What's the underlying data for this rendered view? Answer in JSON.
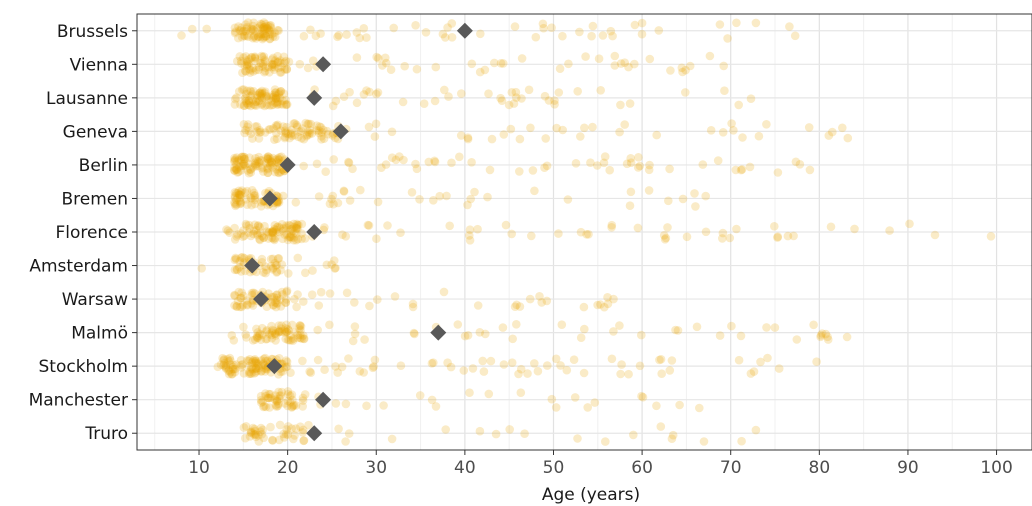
{
  "chart_data": {
    "type": "scatter",
    "title": "",
    "xlabel": "Age (years)",
    "ylabel": "",
    "xlim": [
      3,
      104
    ],
    "x_ticks": [
      "10",
      "20",
      "30",
      "40",
      "50",
      "60",
      "70",
      "80",
      "90",
      "100"
    ],
    "grid": true,
    "legend": "none",
    "point_color": "#E8A400",
    "point_opacity": 0.22,
    "marker_color": "#595959",
    "marker_shape": "diamond",
    "categories": [
      "Brussels",
      "Vienna",
      "Lausanne",
      "Geneva",
      "Berlin",
      "Bremen",
      "Florence",
      "Amsterdam",
      "Warsaw",
      "Malmö",
      "Stockholm",
      "Manchester",
      "Truro"
    ],
    "series": [
      {
        "category": "Brussels",
        "marker": 40,
        "points": [
          {
            "min": 6,
            "max": 78,
            "n": 120,
            "dense_min": 14,
            "dense_max": 19
          }
        ]
      },
      {
        "category": "Vienna",
        "marker": 24,
        "points": [
          {
            "min": 14,
            "max": 72,
            "n": 110,
            "dense_min": 15,
            "dense_max": 20
          }
        ]
      },
      {
        "category": "Lausanne",
        "marker": 23,
        "points": [
          {
            "min": 14,
            "max": 76,
            "n": 130,
            "dense_min": 15,
            "dense_max": 20
          }
        ]
      },
      {
        "category": "Geneva",
        "marker": 26,
        "points": [
          {
            "min": 15,
            "max": 86,
            "n": 115,
            "dense_min": 16,
            "dense_max": 26
          }
        ]
      },
      {
        "category": "Berlin",
        "marker": 20,
        "points": [
          {
            "min": 14,
            "max": 79,
            "n": 150,
            "dense_min": 14,
            "dense_max": 20
          }
        ]
      },
      {
        "category": "Bremen",
        "marker": 18,
        "points": [
          {
            "min": 14,
            "max": 71,
            "n": 95,
            "dense_min": 14,
            "dense_max": 19
          }
        ]
      },
      {
        "category": "Florence",
        "marker": 23,
        "points": [
          {
            "min": 13,
            "max": 100,
            "n": 140,
            "dense_min": 15,
            "dense_max": 22
          }
        ]
      },
      {
        "category": "Amsterdam",
        "marker": 16,
        "points": [
          {
            "min": 7,
            "max": 26,
            "n": 55,
            "dense_min": 14,
            "dense_max": 19
          }
        ]
      },
      {
        "category": "Warsaw",
        "marker": 17,
        "points": [
          {
            "min": 14,
            "max": 57,
            "n": 90,
            "dense_min": 14,
            "dense_max": 20
          }
        ]
      },
      {
        "category": "Malmö",
        "marker": 37,
        "points": [
          {
            "min": 13,
            "max": 84,
            "n": 110,
            "dense_min": 16,
            "dense_max": 22
          }
        ]
      },
      {
        "category": "Stockholm",
        "marker": 18.5,
        "points": [
          {
            "min": 12,
            "max": 80,
            "n": 160,
            "dense_min": 13,
            "dense_max": 20
          }
        ]
      },
      {
        "category": "Manchester",
        "marker": 24,
        "points": [
          {
            "min": 17,
            "max": 72,
            "n": 70,
            "dense_min": 17,
            "dense_max": 22
          }
        ]
      },
      {
        "category": "Truro",
        "marker": 23,
        "points": [
          {
            "min": 11,
            "max": 73,
            "n": 60,
            "dense_min": 15,
            "dense_max": 22
          }
        ]
      }
    ]
  }
}
